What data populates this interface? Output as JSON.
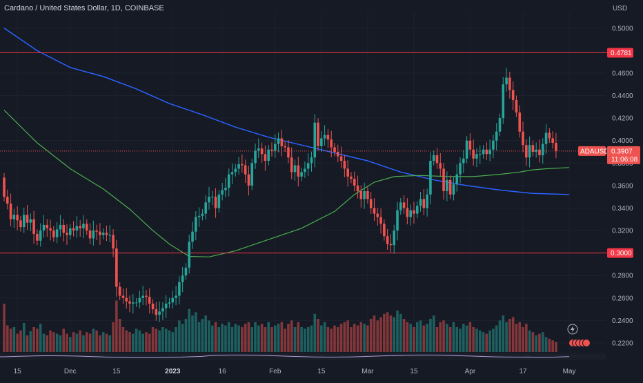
{
  "header": {
    "title": "Cardano / United States Dollar, 1D, COINBASE"
  },
  "colors": {
    "bg": "#161a25",
    "up": "#26a69a",
    "down": "#ef5350",
    "ma_blue": "#2962ff",
    "ma_green": "#4caf50",
    "hline": "#f23645",
    "grid": "#1e222d",
    "axis_text": "#b2b5be"
  },
  "chart_data": {
    "type": "candlestick",
    "symbol": "ADAUSD",
    "currency": "USD",
    "interval": "1D",
    "exchange": "COINBASE",
    "y_axis": {
      "unit": "USD",
      "range": [
        0.212,
        0.514
      ],
      "ticks": [
        "0.2200",
        "0.2400",
        "0.2600",
        "0.2800",
        "0.3000",
        "0.3200",
        "0.3400",
        "0.3600",
        "0.3800",
        "0.4000",
        "0.4200",
        "0.4400",
        "0.4600",
        "0.4800",
        "0.5000"
      ]
    },
    "x_axis": {
      "ticks": [
        {
          "label": "15",
          "bar": 4
        },
        {
          "label": "Dec",
          "bar": 20
        },
        {
          "label": "15",
          "bar": 34
        },
        {
          "label": "2023",
          "bar": 51,
          "bold": true
        },
        {
          "label": "16",
          "bar": 66
        },
        {
          "label": "Feb",
          "bar": 82
        },
        {
          "label": "15",
          "bar": 96
        },
        {
          "label": "Mar",
          "bar": 110
        },
        {
          "label": "15",
          "bar": 124
        },
        {
          "label": "Apr",
          "bar": 141
        },
        {
          "label": "17",
          "bar": 157
        },
        {
          "label": "May",
          "bar": 171
        }
      ]
    },
    "horizontal_lines": [
      {
        "value": 0.4781,
        "label": "0.4781"
      },
      {
        "value": 0.3,
        "label": "0.3000"
      }
    ],
    "last_price": {
      "symbol": "ADAUSD",
      "value": "0.3907",
      "countdown": "11:06:08"
    },
    "open": [
      0.367,
      0.35,
      0.344,
      0.33,
      0.334,
      0.329,
      0.323,
      0.334,
      0.327,
      0.33,
      0.317,
      0.311,
      0.32,
      0.325,
      0.322,
      0.32,
      0.314,
      0.321,
      0.325,
      0.318,
      0.316,
      0.322,
      0.32,
      0.324,
      0.322,
      0.326,
      0.32,
      0.313,
      0.32,
      0.319,
      0.316,
      0.318,
      0.316,
      0.316,
      0.304,
      0.27,
      0.262,
      0.26,
      0.257,
      0.255,
      0.256,
      0.256,
      0.26,
      0.262,
      0.261,
      0.255,
      0.25,
      0.245,
      0.248,
      0.251,
      0.255,
      0.256,
      0.26,
      0.262,
      0.274,
      0.28,
      0.287,
      0.31,
      0.319,
      0.332,
      0.333,
      0.335,
      0.345,
      0.35,
      0.35,
      0.34,
      0.352,
      0.356,
      0.358,
      0.37,
      0.372,
      0.375,
      0.379,
      0.378,
      0.37,
      0.36,
      0.38,
      0.391,
      0.393,
      0.388,
      0.382,
      0.392,
      0.391,
      0.397,
      0.402,
      0.395,
      0.394,
      0.385,
      0.372,
      0.378,
      0.368,
      0.372,
      0.375,
      0.38,
      0.385,
      0.416,
      0.395,
      0.402,
      0.405,
      0.401,
      0.394,
      0.39,
      0.386,
      0.382,
      0.375,
      0.368,
      0.366,
      0.36,
      0.355,
      0.348,
      0.355,
      0.348,
      0.34,
      0.335,
      0.332,
      0.326,
      0.315,
      0.308,
      0.307,
      0.32,
      0.338,
      0.345,
      0.34,
      0.332,
      0.338,
      0.335,
      0.342,
      0.348,
      0.34,
      0.352,
      0.382,
      0.387,
      0.38,
      0.375,
      0.355,
      0.365,
      0.352,
      0.361,
      0.37,
      0.38,
      0.384,
      0.4,
      0.392,
      0.384,
      0.388,
      0.388,
      0.392,
      0.388,
      0.392,
      0.4,
      0.408,
      0.42,
      0.45,
      0.456,
      0.445,
      0.436,
      0.425,
      0.408,
      0.396,
      0.385,
      0.396,
      0.39,
      0.392,
      0.387,
      0.397,
      0.407,
      0.402,
      0.398
    ],
    "close": [
      0.35,
      0.344,
      0.33,
      0.334,
      0.329,
      0.323,
      0.334,
      0.327,
      0.33,
      0.317,
      0.311,
      0.32,
      0.325,
      0.322,
      0.32,
      0.314,
      0.321,
      0.325,
      0.318,
      0.316,
      0.322,
      0.32,
      0.324,
      0.322,
      0.326,
      0.32,
      0.313,
      0.32,
      0.319,
      0.316,
      0.318,
      0.316,
      0.316,
      0.304,
      0.27,
      0.262,
      0.26,
      0.257,
      0.255,
      0.256,
      0.256,
      0.26,
      0.262,
      0.261,
      0.255,
      0.25,
      0.245,
      0.248,
      0.251,
      0.255,
      0.256,
      0.26,
      0.262,
      0.274,
      0.28,
      0.287,
      0.31,
      0.319,
      0.332,
      0.333,
      0.335,
      0.345,
      0.35,
      0.35,
      0.34,
      0.352,
      0.356,
      0.358,
      0.37,
      0.372,
      0.375,
      0.379,
      0.378,
      0.37,
      0.36,
      0.38,
      0.391,
      0.393,
      0.388,
      0.382,
      0.392,
      0.391,
      0.397,
      0.402,
      0.395,
      0.394,
      0.385,
      0.372,
      0.378,
      0.368,
      0.372,
      0.375,
      0.38,
      0.385,
      0.416,
      0.395,
      0.402,
      0.405,
      0.401,
      0.394,
      0.39,
      0.386,
      0.382,
      0.375,
      0.368,
      0.366,
      0.36,
      0.355,
      0.348,
      0.355,
      0.348,
      0.34,
      0.335,
      0.332,
      0.326,
      0.315,
      0.308,
      0.307,
      0.32,
      0.338,
      0.345,
      0.34,
      0.332,
      0.338,
      0.335,
      0.342,
      0.348,
      0.34,
      0.352,
      0.382,
      0.387,
      0.38,
      0.375,
      0.355,
      0.365,
      0.352,
      0.361,
      0.37,
      0.38,
      0.384,
      0.4,
      0.392,
      0.384,
      0.388,
      0.388,
      0.392,
      0.388,
      0.392,
      0.4,
      0.408,
      0.42,
      0.45,
      0.456,
      0.445,
      0.436,
      0.425,
      0.408,
      0.396,
      0.385,
      0.396,
      0.39,
      0.392,
      0.387,
      0.397,
      0.407,
      0.402,
      0.398,
      0.3907
    ],
    "volume": [
      0.58,
      0.32,
      0.28,
      0.3,
      0.22,
      0.26,
      0.35,
      0.2,
      0.25,
      0.3,
      0.28,
      0.34,
      0.22,
      0.2,
      0.26,
      0.24,
      0.22,
      0.2,
      0.28,
      0.22,
      0.18,
      0.24,
      0.22,
      0.26,
      0.2,
      0.24,
      0.22,
      0.28,
      0.26,
      0.2,
      0.24,
      0.22,
      0.2,
      0.36,
      0.62,
      0.4,
      0.3,
      0.26,
      0.24,
      0.22,
      0.28,
      0.26,
      0.22,
      0.24,
      0.22,
      0.3,
      0.28,
      0.26,
      0.3,
      0.28,
      0.26,
      0.24,
      0.3,
      0.38,
      0.34,
      0.4,
      0.52,
      0.44,
      0.48,
      0.36,
      0.4,
      0.44,
      0.38,
      0.32,
      0.36,
      0.3,
      0.34,
      0.32,
      0.36,
      0.3,
      0.34,
      0.32,
      0.3,
      0.34,
      0.36,
      0.3,
      0.36,
      0.32,
      0.34,
      0.3,
      0.36,
      0.3,
      0.32,
      0.34,
      0.36,
      0.28,
      0.34,
      0.38,
      0.3,
      0.36,
      0.3,
      0.28,
      0.3,
      0.32,
      0.46,
      0.4,
      0.32,
      0.36,
      0.3,
      0.28,
      0.32,
      0.3,
      0.34,
      0.36,
      0.38,
      0.3,
      0.34,
      0.32,
      0.36,
      0.34,
      0.32,
      0.4,
      0.44,
      0.38,
      0.42,
      0.46,
      0.48,
      0.44,
      0.42,
      0.5,
      0.46,
      0.4,
      0.36,
      0.34,
      0.3,
      0.36,
      0.38,
      0.32,
      0.34,
      0.4,
      0.44,
      0.3,
      0.36,
      0.38,
      0.34,
      0.3,
      0.36,
      0.3,
      0.28,
      0.34,
      0.32,
      0.36,
      0.3,
      0.28,
      0.26,
      0.24,
      0.22,
      0.26,
      0.28,
      0.32,
      0.38,
      0.44,
      0.36,
      0.4,
      0.42,
      0.34,
      0.36,
      0.3,
      0.34,
      0.26,
      0.24,
      0.2,
      0.22,
      0.24,
      0.18,
      0.16,
      0.14,
      0.12
    ],
    "ma_long": [
      [
        0,
        0.5
      ],
      [
        10,
        0.48
      ],
      [
        20,
        0.465
      ],
      [
        30,
        0.457
      ],
      [
        40,
        0.446
      ],
      [
        50,
        0.433
      ],
      [
        60,
        0.423
      ],
      [
        70,
        0.412
      ],
      [
        80,
        0.403
      ],
      [
        90,
        0.396
      ],
      [
        100,
        0.389
      ],
      [
        110,
        0.382
      ],
      [
        120,
        0.372
      ],
      [
        130,
        0.365
      ],
      [
        140,
        0.36
      ],
      [
        150,
        0.356
      ],
      [
        160,
        0.353
      ],
      [
        171,
        0.352
      ]
    ],
    "ma_short": [
      [
        0,
        0.427
      ],
      [
        10,
        0.398
      ],
      [
        20,
        0.375
      ],
      [
        30,
        0.357
      ],
      [
        38,
        0.339
      ],
      [
        45,
        0.32
      ],
      [
        50,
        0.308
      ],
      [
        56,
        0.297
      ],
      [
        62,
        0.2965
      ],
      [
        70,
        0.302
      ],
      [
        80,
        0.312
      ],
      [
        90,
        0.322
      ],
      [
        100,
        0.337
      ],
      [
        106,
        0.352
      ],
      [
        112,
        0.363
      ],
      [
        118,
        0.368
      ],
      [
        126,
        0.369
      ],
      [
        134,
        0.368
      ],
      [
        142,
        0.368
      ],
      [
        150,
        0.37
      ],
      [
        156,
        0.372
      ],
      [
        160,
        0.374
      ],
      [
        164,
        0.375
      ],
      [
        171,
        0.376
      ]
    ]
  }
}
